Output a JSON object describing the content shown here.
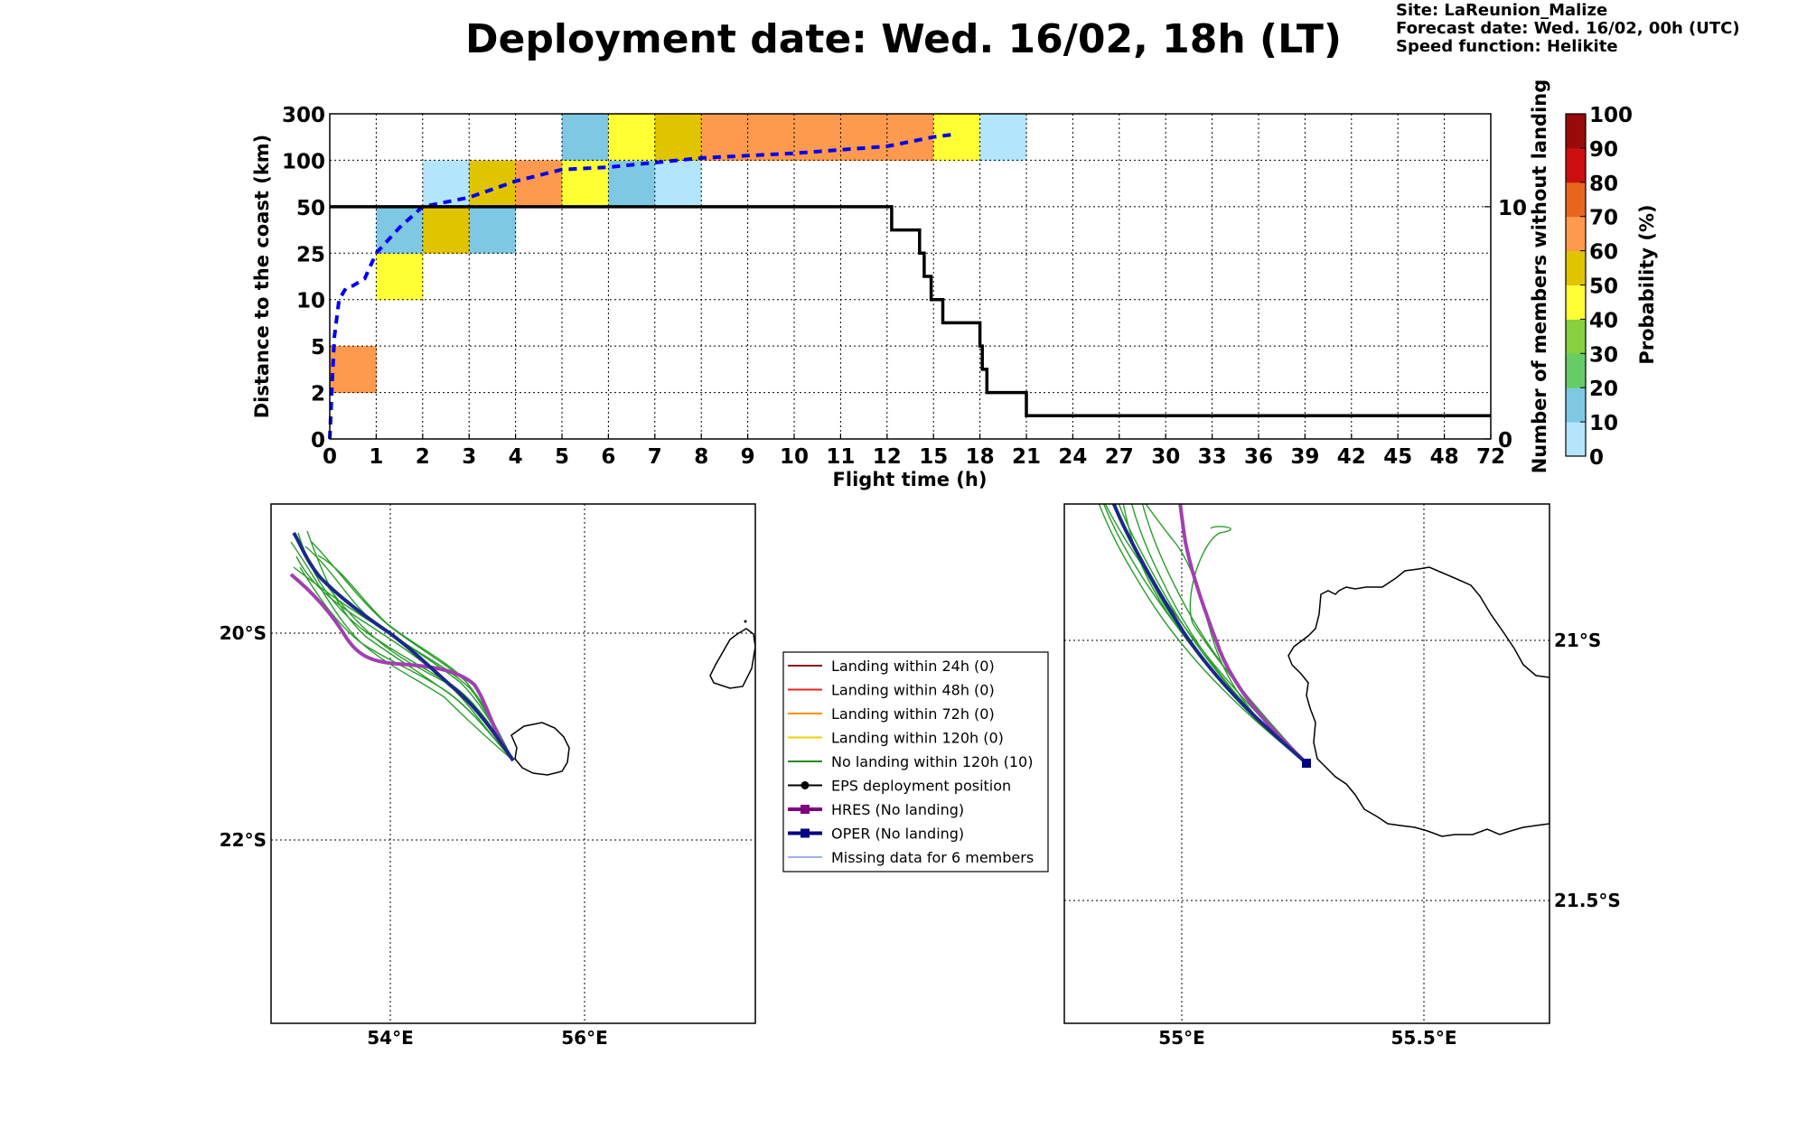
{
  "header": {
    "title": "Deployment date: Wed. 16/02, 18h (LT)",
    "site": "Site: LaReunion_Malize",
    "forecast_date": "Forecast date: Wed. 16/02, 00h (UTC)",
    "speed_function": "Speed function: Helikite"
  },
  "chart_data": [
    {
      "type": "heatmap",
      "xlabel": "Flight time (h)",
      "ylabel": "Distance to the coast (km)",
      "y2label": "Number of members without landing",
      "x_ticks": [
        "0",
        "1",
        "2",
        "3",
        "4",
        "5",
        "6",
        "7",
        "8",
        "9",
        "10",
        "11",
        "12",
        "15",
        "18",
        "21",
        "24",
        "27",
        "30",
        "33",
        "36",
        "39",
        "42",
        "45",
        "48",
        "72"
      ],
      "y_ticks": [
        "0",
        "2",
        "5",
        "10",
        "25",
        "50",
        "100",
        "300"
      ],
      "y2_ticks": [
        "0",
        "10"
      ],
      "grid": true,
      "cells": [
        {
          "x": 0,
          "y": 1,
          "color": "#fd9a4e"
        },
        {
          "x": 1,
          "y": 3,
          "color": "#ffff33"
        },
        {
          "x": 1,
          "y": 4,
          "color": "#7ec8e3"
        },
        {
          "x": 2,
          "y": 4,
          "color": "#e0c400"
        },
        {
          "x": 2,
          "y": 5,
          "color": "#b3e5fc"
        },
        {
          "x": 3,
          "y": 4,
          "color": "#7ec8e3"
        },
        {
          "x": 3,
          "y": 5,
          "color": "#e0c400"
        },
        {
          "x": 4,
          "y": 5,
          "color": "#fd9a4e"
        },
        {
          "x": 5,
          "y": 5,
          "color": "#ffff33"
        },
        {
          "x": 5,
          "y": 6,
          "color": "#7ec8e3"
        },
        {
          "x": 6,
          "y": 5,
          "color": "#7ec8e3"
        },
        {
          "x": 6,
          "y": 6,
          "color": "#ffff33"
        },
        {
          "x": 7,
          "y": 5,
          "color": "#b3e5fc"
        },
        {
          "x": 7,
          "y": 6,
          "color": "#e0c400"
        },
        {
          "x": 8,
          "y": 6,
          "color": "#fd9a4e"
        },
        {
          "x": 9,
          "y": 6,
          "color": "#fd9a4e"
        },
        {
          "x": 10,
          "y": 6,
          "color": "#fd9a4e"
        },
        {
          "x": 11,
          "y": 6,
          "color": "#fd9a4e"
        },
        {
          "x": 12,
          "y": 6,
          "color": "#fd9a4e"
        },
        {
          "x": 13,
          "y": 6,
          "color": "#ffff33"
        },
        {
          "x": 14,
          "y": 6,
          "color": "#b3e5fc"
        }
      ],
      "median_distance": [
        [
          0,
          0
        ],
        [
          0.05,
          1.2
        ],
        [
          0.1,
          2.2
        ],
        [
          0.2,
          3.0
        ],
        [
          0.35,
          3.25
        ],
        [
          0.5,
          3.3
        ],
        [
          0.75,
          3.45
        ],
        [
          1,
          4.0
        ],
        [
          1.5,
          4.55
        ],
        [
          2,
          5.0
        ],
        [
          3,
          5.2
        ],
        [
          4,
          5.55
        ],
        [
          5,
          5.8
        ],
        [
          6,
          5.85
        ],
        [
          8,
          6.05
        ],
        [
          10,
          6.15
        ],
        [
          12,
          6.3
        ],
        [
          13,
          6.5
        ],
        [
          13.4,
          6.55
        ]
      ],
      "members_without_landing": [
        [
          0,
          10
        ],
        [
          12.1,
          10
        ],
        [
          12.1,
          9
        ],
        [
          12.7,
          9
        ],
        [
          12.7,
          8
        ],
        [
          12.8,
          8
        ],
        [
          12.8,
          7
        ],
        [
          12.95,
          7
        ],
        [
          12.95,
          6
        ],
        [
          13.2,
          6
        ],
        [
          13.2,
          5
        ],
        [
          14,
          5
        ],
        [
          14,
          4
        ],
        [
          14.05,
          4
        ],
        [
          14.05,
          3
        ],
        [
          14.15,
          3
        ],
        [
          14.15,
          2
        ],
        [
          15,
          2
        ],
        [
          15,
          1
        ],
        [
          25,
          1
        ]
      ],
      "colorbar": {
        "label": "Probability (%)",
        "ticks": [
          "0",
          "10",
          "20",
          "30",
          "40",
          "50",
          "60",
          "70",
          "80",
          "90",
          "100"
        ],
        "colors": [
          "#b3e5fc",
          "#7ec8e3",
          "#66cc66",
          "#88d040",
          "#ffff33",
          "#e0c400",
          "#fd9a4e",
          "#e8661c",
          "#cc1010",
          "#990a0a",
          "#660010"
        ]
      }
    },
    {
      "type": "map",
      "lon_ticks": [
        "54°E",
        "56°E"
      ],
      "lat_ticks": [
        "20°S",
        "22°S"
      ]
    },
    {
      "type": "map",
      "lon_ticks": [
        "55°E",
        "55.5°E"
      ],
      "lat_ticks": [
        "21°S",
        "21.5°S"
      ]
    }
  ],
  "legend": {
    "items": [
      {
        "label": "Landing within 24h (0)",
        "color": "#8b1a1a",
        "marker": "none",
        "width": 2
      },
      {
        "label": "Landing within 48h (0)",
        "color": "#ee2222",
        "marker": "none",
        "width": 2
      },
      {
        "label": "Landing within 72h (0)",
        "color": "#ff8c00",
        "marker": "none",
        "width": 2
      },
      {
        "label": "Landing within 120h (0)",
        "color": "#f2d000",
        "marker": "none",
        "width": 2
      },
      {
        "label": "No landing within 120h (10)",
        "color": "#228b22",
        "marker": "none",
        "width": 2
      },
      {
        "label": "EPS deployment position",
        "color": "#000000",
        "marker": "circle",
        "width": 2
      },
      {
        "label": "HRES (No landing)",
        "color": "#800080",
        "marker": "square",
        "width": 4
      },
      {
        "label": "OPER (No landing)",
        "color": "#000080",
        "marker": "square",
        "width": 4
      },
      {
        "label": "Missing data for 6 members",
        "color": "#4a5cf0",
        "marker": "none",
        "width": 1
      }
    ]
  }
}
